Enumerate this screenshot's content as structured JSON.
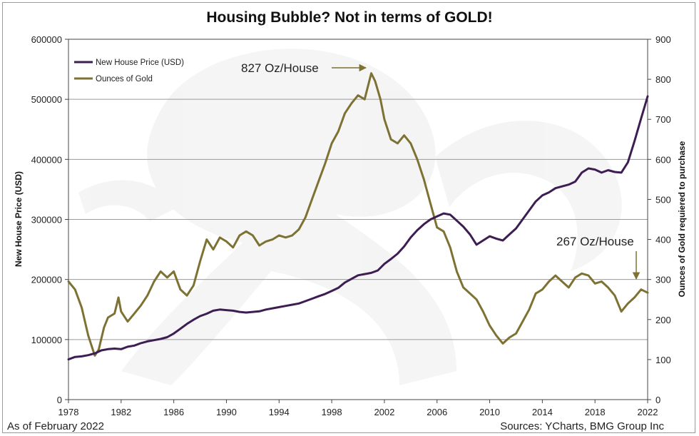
{
  "chart_data": {
    "type": "line",
    "title": "Housing Bubble?  Not in terms of GOLD!",
    "ylabel_left": "New House Price (USD)",
    "ylabel_right": "Ounces of Gold requiered to purchase",
    "x_range": [
      1978,
      2022
    ],
    "y_left_range": [
      0,
      600000
    ],
    "y_right_range": [
      0,
      900
    ],
    "x_ticks": [
      "1978",
      "1982",
      "1986",
      "1990",
      "1994",
      "1998",
      "2002",
      "2006",
      "2010",
      "2014",
      "2018",
      "2022"
    ],
    "y_left_ticks": [
      "0",
      "100000",
      "200000",
      "300000",
      "400000",
      "500000",
      "600000"
    ],
    "y_right_ticks": [
      "0",
      "100",
      "200",
      "300",
      "400",
      "500",
      "600",
      "700",
      "800",
      "900"
    ],
    "legend_position": "top-left",
    "series": [
      {
        "name": "New House Price (USD)",
        "axis": "left",
        "color": "#3d1d52",
        "points": [
          [
            1978.0,
            67000
          ],
          [
            1978.5,
            71000
          ],
          [
            1979.0,
            72000
          ],
          [
            1979.5,
            74000
          ],
          [
            1980.0,
            77000
          ],
          [
            1980.5,
            82000
          ],
          [
            1981.0,
            84000
          ],
          [
            1981.5,
            85000
          ],
          [
            1982.0,
            84000
          ],
          [
            1982.5,
            88000
          ],
          [
            1983.0,
            90000
          ],
          [
            1983.5,
            94000
          ],
          [
            1984.0,
            97000
          ],
          [
            1984.5,
            99000
          ],
          [
            1985.0,
            101000
          ],
          [
            1985.5,
            104000
          ],
          [
            1986.0,
            110000
          ],
          [
            1986.5,
            118000
          ],
          [
            1987.0,
            126000
          ],
          [
            1987.5,
            133000
          ],
          [
            1988.0,
            139000
          ],
          [
            1988.5,
            143000
          ],
          [
            1989.0,
            148000
          ],
          [
            1989.5,
            150000
          ],
          [
            1990.0,
            149000
          ],
          [
            1990.5,
            148000
          ],
          [
            1991.0,
            146000
          ],
          [
            1991.5,
            145000
          ],
          [
            1992.0,
            146000
          ],
          [
            1992.5,
            147000
          ],
          [
            1993.0,
            150000
          ],
          [
            1993.5,
            152000
          ],
          [
            1994.0,
            154000
          ],
          [
            1994.5,
            156000
          ],
          [
            1995.0,
            158000
          ],
          [
            1995.5,
            160000
          ],
          [
            1996.0,
            164000
          ],
          [
            1996.5,
            168000
          ],
          [
            1997.0,
            172000
          ],
          [
            1997.5,
            176000
          ],
          [
            1998.0,
            181000
          ],
          [
            1998.5,
            186000
          ],
          [
            1999.0,
            195000
          ],
          [
            1999.5,
            201000
          ],
          [
            2000.0,
            207000
          ],
          [
            2000.5,
            209000
          ],
          [
            2001.0,
            211000
          ],
          [
            2001.5,
            215000
          ],
          [
            2002.0,
            226000
          ],
          [
            2002.5,
            234000
          ],
          [
            2003.0,
            243000
          ],
          [
            2003.5,
            255000
          ],
          [
            2004.0,
            270000
          ],
          [
            2004.5,
            282000
          ],
          [
            2005.0,
            292000
          ],
          [
            2005.5,
            300000
          ],
          [
            2006.0,
            305000
          ],
          [
            2006.5,
            310000
          ],
          [
            2007.0,
            308000
          ],
          [
            2007.5,
            298000
          ],
          [
            2008.0,
            288000
          ],
          [
            2008.5,
            275000
          ],
          [
            2009.0,
            258000
          ],
          [
            2009.5,
            265000
          ],
          [
            2010.0,
            272000
          ],
          [
            2010.5,
            268000
          ],
          [
            2011.0,
            265000
          ],
          [
            2011.5,
            275000
          ],
          [
            2012.0,
            285000
          ],
          [
            2012.5,
            300000
          ],
          [
            2013.0,
            315000
          ],
          [
            2013.5,
            330000
          ],
          [
            2014.0,
            340000
          ],
          [
            2014.5,
            345000
          ],
          [
            2015.0,
            352000
          ],
          [
            2015.5,
            355000
          ],
          [
            2016.0,
            358000
          ],
          [
            2016.5,
            363000
          ],
          [
            2017.0,
            378000
          ],
          [
            2017.5,
            385000
          ],
          [
            2018.0,
            383000
          ],
          [
            2018.5,
            378000
          ],
          [
            2019.0,
            382000
          ],
          [
            2019.5,
            379000
          ],
          [
            2020.0,
            378000
          ],
          [
            2020.5,
            395000
          ],
          [
            2021.0,
            430000
          ],
          [
            2021.5,
            468000
          ],
          [
            2022.0,
            505000
          ]
        ]
      },
      {
        "name": "Ounces of Gold",
        "axis": "right",
        "color": "#7d7234",
        "points": [
          [
            1978.0,
            295
          ],
          [
            1978.5,
            275
          ],
          [
            1979.0,
            230
          ],
          [
            1979.5,
            160
          ],
          [
            1980.0,
            110
          ],
          [
            1980.3,
            125
          ],
          [
            1980.7,
            180
          ],
          [
            1981.0,
            205
          ],
          [
            1981.5,
            215
          ],
          [
            1981.8,
            255
          ],
          [
            1982.0,
            220
          ],
          [
            1982.5,
            195
          ],
          [
            1983.0,
            215
          ],
          [
            1983.5,
            235
          ],
          [
            1984.0,
            260
          ],
          [
            1984.5,
            295
          ],
          [
            1985.0,
            320
          ],
          [
            1985.5,
            305
          ],
          [
            1986.0,
            320
          ],
          [
            1986.5,
            275
          ],
          [
            1987.0,
            260
          ],
          [
            1987.5,
            285
          ],
          [
            1988.0,
            345
          ],
          [
            1988.5,
            400
          ],
          [
            1989.0,
            375
          ],
          [
            1989.5,
            405
          ],
          [
            1990.0,
            395
          ],
          [
            1990.5,
            380
          ],
          [
            1991.0,
            410
          ],
          [
            1991.5,
            420
          ],
          [
            1992.0,
            410
          ],
          [
            1992.5,
            385
          ],
          [
            1993.0,
            395
          ],
          [
            1993.5,
            400
          ],
          [
            1994.0,
            410
          ],
          [
            1994.5,
            405
          ],
          [
            1995.0,
            410
          ],
          [
            1995.5,
            425
          ],
          [
            1996.0,
            455
          ],
          [
            1996.5,
            500
          ],
          [
            1997.0,
            545
          ],
          [
            1997.5,
            590
          ],
          [
            1998.0,
            640
          ],
          [
            1998.5,
            670
          ],
          [
            1999.0,
            715
          ],
          [
            1999.5,
            740
          ],
          [
            2000.0,
            760
          ],
          [
            2000.5,
            750
          ],
          [
            2001.0,
            815
          ],
          [
            2001.3,
            795
          ],
          [
            2001.7,
            750
          ],
          [
            2002.0,
            700
          ],
          [
            2002.5,
            650
          ],
          [
            2003.0,
            640
          ],
          [
            2003.5,
            660
          ],
          [
            2004.0,
            640
          ],
          [
            2004.5,
            600
          ],
          [
            2005.0,
            550
          ],
          [
            2005.5,
            490
          ],
          [
            2006.0,
            430
          ],
          [
            2006.5,
            420
          ],
          [
            2007.0,
            380
          ],
          [
            2007.5,
            320
          ],
          [
            2008.0,
            280
          ],
          [
            2008.5,
            265
          ],
          [
            2009.0,
            250
          ],
          [
            2009.5,
            220
          ],
          [
            2010.0,
            185
          ],
          [
            2010.5,
            160
          ],
          [
            2011.0,
            140
          ],
          [
            2011.5,
            155
          ],
          [
            2012.0,
            165
          ],
          [
            2012.5,
            195
          ],
          [
            2013.0,
            225
          ],
          [
            2013.5,
            265
          ],
          [
            2014.0,
            275
          ],
          [
            2014.5,
            295
          ],
          [
            2015.0,
            310
          ],
          [
            2015.5,
            295
          ],
          [
            2016.0,
            280
          ],
          [
            2016.5,
            305
          ],
          [
            2017.0,
            315
          ],
          [
            2017.5,
            310
          ],
          [
            2018.0,
            290
          ],
          [
            2018.5,
            295
          ],
          [
            2019.0,
            280
          ],
          [
            2019.5,
            260
          ],
          [
            2020.0,
            220
          ],
          [
            2020.5,
            240
          ],
          [
            2021.0,
            255
          ],
          [
            2021.5,
            275
          ],
          [
            2022.0,
            267
          ]
        ]
      }
    ],
    "annotations": [
      {
        "text": "827 Oz/House",
        "x": 2000.5,
        "y": 827,
        "axis": "right",
        "arrow": "right"
      },
      {
        "text": "267 Oz/House",
        "x": 2021.8,
        "y": 267,
        "axis": "right",
        "arrow": "down"
      }
    ]
  },
  "footer": {
    "left": "As of February 2022",
    "right": "Sources: YCharts, BMG Group Inc"
  }
}
